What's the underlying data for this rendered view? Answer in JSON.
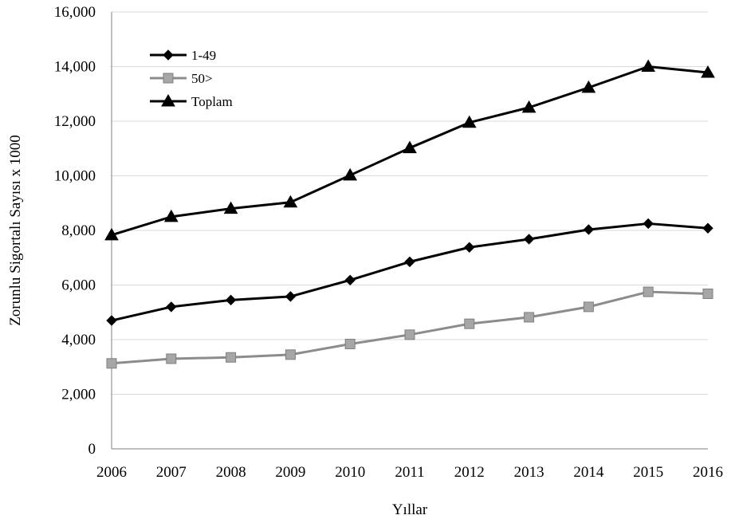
{
  "chart_data": {
    "type": "line",
    "title": "",
    "xlabel": "Yıllar",
    "ylabel": "Zorunlu Sigortalı Sayısı x 1000",
    "x": [
      2006,
      2007,
      2008,
      2009,
      2010,
      2011,
      2012,
      2013,
      2014,
      2015,
      2016
    ],
    "x_tick_labels": [
      "2006",
      "2007",
      "2008",
      "2009",
      "2010",
      "2011",
      "2012",
      "2013",
      "2014",
      "2015",
      "2016"
    ],
    "ylim": [
      0,
      16000
    ],
    "y_ticks": [
      0,
      2000,
      4000,
      6000,
      8000,
      10000,
      12000,
      14000,
      16000
    ],
    "y_tick_labels": [
      "0",
      "2,000",
      "4,000",
      "6,000",
      "8,000",
      "10,000",
      "12,000",
      "14,000",
      "16,000"
    ],
    "grid": true,
    "legend_position": "top-left",
    "series": [
      {
        "name": "1-49",
        "marker": "diamond",
        "color": "#000000",
        "values": [
          4700,
          5200,
          5450,
          5580,
          6180,
          6850,
          7380,
          7680,
          8030,
          8250,
          8080
        ]
      },
      {
        "name": "50>",
        "marker": "square",
        "color": "#8c8c8c",
        "values": [
          3130,
          3300,
          3350,
          3450,
          3840,
          4180,
          4580,
          4820,
          5200,
          5750,
          5680
        ]
      },
      {
        "name": "Toplam",
        "marker": "triangle",
        "color": "#000000",
        "values": [
          7830,
          8500,
          8800,
          9030,
          10020,
          11020,
          11950,
          12500,
          13230,
          14000,
          13780
        ]
      }
    ]
  }
}
